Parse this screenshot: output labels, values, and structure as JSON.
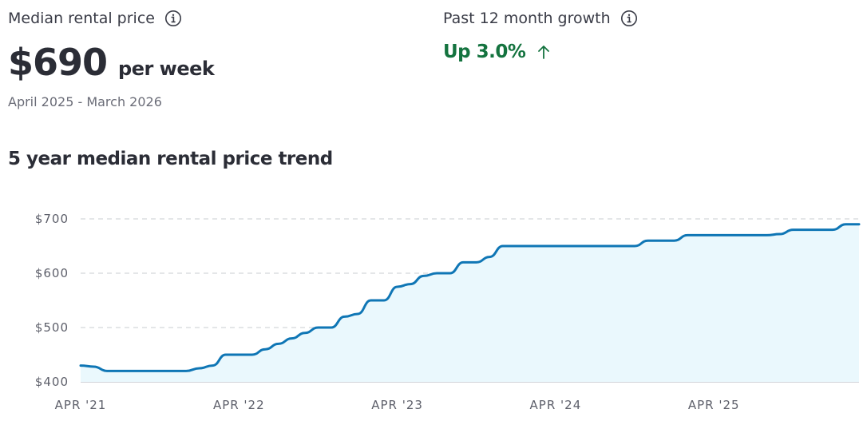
{
  "median": {
    "label": "Median rental price",
    "value": "$690",
    "unit": "per week",
    "date_range": "April 2025 - March 2026",
    "icon": "info-icon"
  },
  "growth": {
    "label": "Past 12 month growth",
    "value": "Up 3.0%",
    "icon": "info-icon",
    "trend_icon": "arrow-up-icon",
    "color": "#14733f"
  },
  "trend": {
    "title": "5 year median rental price trend"
  },
  "chart_data": {
    "type": "area",
    "title": "",
    "xlabel": "",
    "ylabel": "",
    "ylim": [
      400,
      700
    ],
    "y_ticks": [
      400,
      500,
      600,
      700
    ],
    "y_tick_labels": [
      "$400",
      "$500",
      "$600",
      "$700"
    ],
    "xlim": [
      "2021-04",
      "2026-03"
    ],
    "x_ticks": [
      "2021-04",
      "2022-04",
      "2023-04",
      "2024-04",
      "2025-04"
    ],
    "x_tick_labels": [
      "APR '21",
      "APR '22",
      "APR '23",
      "APR '24",
      "APR '25"
    ],
    "grid": true,
    "line_color": "#0f76b5",
    "fill_color": "#eaf8fd",
    "series": [
      {
        "x": [
          "2021-04",
          "2021-05",
          "2021-06",
          "2021-07",
          "2021-08",
          "2021-09",
          "2021-10",
          "2021-11",
          "2021-12",
          "2022-01",
          "2022-02",
          "2022-03",
          "2022-04",
          "2022-05",
          "2022-06",
          "2022-07",
          "2022-08",
          "2022-09",
          "2022-10",
          "2022-11",
          "2022-12",
          "2023-01",
          "2023-02",
          "2023-03",
          "2023-04",
          "2023-05",
          "2023-06",
          "2023-07",
          "2023-08",
          "2023-09",
          "2023-10",
          "2023-11",
          "2023-12",
          "2024-01",
          "2024-02",
          "2024-03",
          "2024-04",
          "2024-05",
          "2024-06",
          "2024-07",
          "2024-08",
          "2024-09",
          "2024-10",
          "2024-11",
          "2024-12",
          "2025-01",
          "2025-02",
          "2025-03",
          "2025-04",
          "2025-05",
          "2025-06",
          "2025-07",
          "2025-08",
          "2025-09",
          "2025-10",
          "2025-11",
          "2025-12",
          "2026-01",
          "2026-02",
          "2026-03"
        ],
        "values": [
          430,
          428,
          420,
          420,
          420,
          420,
          420,
          420,
          420,
          425,
          430,
          450,
          450,
          450,
          460,
          470,
          480,
          490,
          500,
          500,
          520,
          525,
          550,
          550,
          575,
          580,
          595,
          600,
          600,
          620,
          620,
          630,
          650,
          650,
          650,
          650,
          650,
          650,
          650,
          650,
          650,
          650,
          650,
          660,
          660,
          660,
          670,
          670,
          670,
          670,
          670,
          670,
          670,
          672,
          680,
          680,
          680,
          680,
          690,
          690
        ]
      }
    ]
  }
}
